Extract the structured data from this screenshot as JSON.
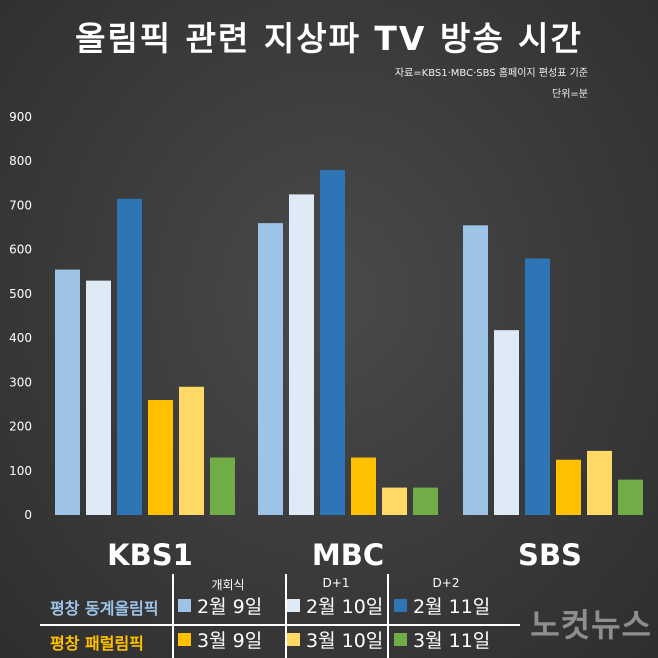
{
  "title": "올림픽 관련 지상파 TV 방송 시간",
  "source": "자료=KBS1·MBC·SBS 홈페이지 편성표 기준",
  "unit": "단위=분",
  "watermark": "노컷뉴스",
  "chart_data": {
    "type": "bar",
    "categories": [
      "KBS1",
      "MBC",
      "SBS"
    ],
    "ylim": [
      0,
      900
    ],
    "yticks": [
      0,
      100,
      200,
      300,
      400,
      500,
      600,
      700,
      800,
      900
    ],
    "grid": false,
    "legend_position": "bottom",
    "series": [
      {
        "name": "2월 9일",
        "color": "#9dc3e6",
        "values": [
          555,
          660,
          655
        ]
      },
      {
        "name": "2월 10일",
        "color": "#deebf7",
        "values": [
          530,
          725,
          418
        ]
      },
      {
        "name": "2월 11일",
        "color": "#2e75b6",
        "values": [
          715,
          780,
          580
        ]
      },
      {
        "name": "3월 9일",
        "color": "#ffc000",
        "values": [
          260,
          130,
          125
        ]
      },
      {
        "name": "3월 10일",
        "color": "#ffd966",
        "values": [
          290,
          62,
          145
        ]
      },
      {
        "name": "3월 11일",
        "color": "#70ad47",
        "values": [
          130,
          62,
          80
        ]
      }
    ]
  },
  "legend": {
    "columns": [
      "개회식",
      "D+1",
      "D+2"
    ],
    "rows": [
      {
        "label": "평창 동계올림픽",
        "color": "#9dc3e6",
        "items": [
          "2월 9일",
          "2월 10일",
          "2월 11일"
        ]
      },
      {
        "label": "평창 패럴림픽",
        "color": "#ffc000",
        "items": [
          "3월 9일",
          "3월 10일",
          "3월 11일"
        ]
      }
    ]
  }
}
